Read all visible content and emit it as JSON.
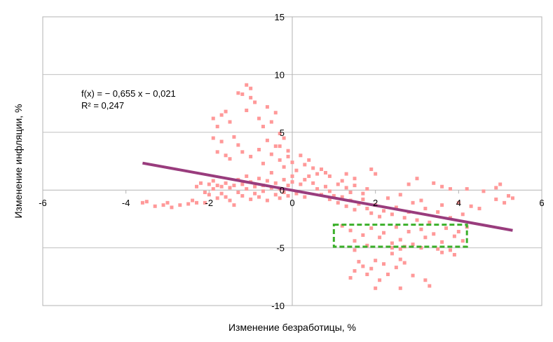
{
  "chart_data": {
    "type": "scatter",
    "title": "",
    "xlabel": "Изменение безработицы, %",
    "ylabel": "Изменение инфляции, %",
    "xlim": [
      -6,
      6
    ],
    "ylim": [
      -10,
      15
    ],
    "x_ticks": [
      "-6",
      "-4",
      "-2",
      "0",
      "2",
      "4",
      "6"
    ],
    "y_ticks": [
      "15",
      "10",
      "5",
      "0",
      "-5",
      "-10"
    ],
    "grid": "horizontal",
    "legend": "none",
    "equation": "f(x) = − 0,655 x − 0,021",
    "r_squared": "R² = 0,247",
    "trendline": {
      "slope": -0.655,
      "intercept": -0.021,
      "x_range": [
        -3.6,
        5.3
      ]
    },
    "highlight_box": {
      "x_range": [
        1.0,
        4.2
      ],
      "y_range": [
        -4.9,
        -3.0
      ],
      "note": "dashed green"
    },
    "colors": {
      "points": "#ff9999",
      "trendline": "#993c7d",
      "highlight": "#3bb02a",
      "grid": "#c0c0c0"
    },
    "series": [
      {
        "name": "points",
        "points": [
          [
            -3.6,
            -1.1
          ],
          [
            -3.5,
            -1.0
          ],
          [
            -3.3,
            -1.4
          ],
          [
            -3.1,
            -1.3
          ],
          [
            -3.0,
            -1.1
          ],
          [
            -2.9,
            -1.5
          ],
          [
            -2.7,
            -1.3
          ],
          [
            -2.5,
            -1.2
          ],
          [
            -2.4,
            -0.9
          ],
          [
            -2.3,
            -1.1
          ],
          [
            -2.1,
            -1.1
          ],
          [
            -2.3,
            0.3
          ],
          [
            -2.2,
            0.6
          ],
          [
            -2.1,
            -0.2
          ],
          [
            -2.0,
            0.5
          ],
          [
            -2.0,
            -0.4
          ],
          [
            -1.9,
            0.8
          ],
          [
            -1.9,
            0.1
          ],
          [
            -1.8,
            -0.7
          ],
          [
            -1.8,
            0.4
          ],
          [
            -1.7,
            0.3
          ],
          [
            -1.7,
            -0.3
          ],
          [
            -1.6,
            0.6
          ],
          [
            -1.6,
            -0.6
          ],
          [
            -1.5,
            0.2
          ],
          [
            -1.5,
            -0.9
          ],
          [
            -1.4,
            0.4
          ],
          [
            -1.4,
            -1.3
          ],
          [
            -1.3,
            -0.2
          ],
          [
            -1.3,
            0.9
          ],
          [
            -1.2,
            0.5
          ],
          [
            -1.2,
            -0.5
          ],
          [
            -1.1,
            1.2
          ],
          [
            -1.1,
            0.1
          ],
          [
            -1.0,
            -0.8
          ],
          [
            -1.0,
            0.7
          ],
          [
            -0.9,
            0.3
          ],
          [
            -0.9,
            -0.3
          ],
          [
            -0.8,
            1.0
          ],
          [
            -0.8,
            -0.6
          ],
          [
            -0.7,
            0.4
          ],
          [
            -0.7,
            -0.1
          ],
          [
            -0.6,
            0.8
          ],
          [
            -0.6,
            -0.9
          ],
          [
            -0.5,
            0.2
          ],
          [
            -0.5,
            1.5
          ],
          [
            -0.4,
            -0.4
          ],
          [
            -0.4,
            0.6
          ],
          [
            -0.3,
            0.1
          ],
          [
            -0.3,
            -0.7
          ],
          [
            -0.2,
            0.9
          ],
          [
            -0.2,
            -0.2
          ],
          [
            -0.1,
            0.4
          ],
          [
            -0.1,
            -0.5
          ],
          [
            0.0,
            0.7
          ],
          [
            0.1,
            -0.3
          ],
          [
            0.2,
            0.5
          ],
          [
            0.3,
            -0.6
          ],
          [
            0.4,
            1.2
          ],
          [
            -1.9,
            6.2
          ],
          [
            -1.8,
            5.5
          ],
          [
            -1.7,
            6.5
          ],
          [
            -1.6,
            6.8
          ],
          [
            -1.9,
            4.5
          ],
          [
            -1.7,
            4.2
          ],
          [
            -1.5,
            5.9
          ],
          [
            -1.4,
            4.6
          ],
          [
            -1.8,
            3.3
          ],
          [
            -1.6,
            3.0
          ],
          [
            -1.3,
            3.9
          ],
          [
            -1.5,
            2.7
          ],
          [
            -1.2,
            3.3
          ],
          [
            -1.0,
            2.9
          ],
          [
            -1.3,
            8.4
          ],
          [
            -1.2,
            8.3
          ],
          [
            -1.1,
            9.1
          ],
          [
            -1.0,
            8.8
          ],
          [
            -1.0,
            8.0
          ],
          [
            -0.9,
            7.6
          ],
          [
            -1.1,
            6.9
          ],
          [
            -0.8,
            6.2
          ],
          [
            -0.6,
            7.2
          ],
          [
            -0.4,
            6.7
          ],
          [
            -0.7,
            5.5
          ],
          [
            -0.5,
            5.9
          ],
          [
            -0.3,
            4.9
          ],
          [
            -0.6,
            4.3
          ],
          [
            -0.4,
            3.8
          ],
          [
            -0.2,
            4.5
          ],
          [
            -0.8,
            3.5
          ],
          [
            -0.5,
            3.1
          ],
          [
            -0.3,
            2.6
          ],
          [
            -0.1,
            2.9
          ],
          [
            -0.7,
            2.3
          ],
          [
            -0.2,
            2.0
          ],
          [
            0.0,
            2.4
          ],
          [
            0.1,
            1.7
          ],
          [
            0.3,
            2.2
          ],
          [
            0.4,
            2.6
          ],
          [
            0.5,
            1.9
          ],
          [
            0.6,
            1.4
          ],
          [
            0.7,
            1.8
          ],
          [
            0.8,
            1.5
          ],
          [
            0.9,
            1.2
          ],
          [
            -0.1,
            3.4
          ],
          [
            0.2,
            3.0
          ],
          [
            -0.3,
            3.8
          ],
          [
            0.0,
            1.2
          ],
          [
            0.3,
            0.9
          ],
          [
            0.5,
            0.6
          ],
          [
            0.6,
            0.1
          ],
          [
            0.8,
            0.3
          ],
          [
            0.9,
            -0.1
          ],
          [
            1.1,
            0.5
          ],
          [
            1.2,
            0.8
          ],
          [
            1.3,
            0.2
          ],
          [
            1.4,
            -0.2
          ],
          [
            1.5,
            0.4
          ],
          [
            1.7,
            -0.3
          ],
          [
            1.8,
            0.1
          ],
          [
            1.3,
            1.4
          ],
          [
            1.5,
            1.0
          ],
          [
            1.9,
            1.8
          ],
          [
            2.0,
            1.4
          ],
          [
            0.7,
            -0.4
          ],
          [
            0.9,
            -0.8
          ],
          [
            1.0,
            -0.5
          ],
          [
            1.1,
            -1.1
          ],
          [
            1.2,
            -0.6
          ],
          [
            1.3,
            -1.4
          ],
          [
            1.4,
            -0.9
          ],
          [
            1.5,
            -1.7
          ],
          [
            1.6,
            -1.2
          ],
          [
            1.7,
            -0.8
          ],
          [
            1.8,
            -1.6
          ],
          [
            1.9,
            -2.0
          ],
          [
            2.0,
            -1.3
          ],
          [
            2.1,
            -2.3
          ],
          [
            2.2,
            -1.8
          ],
          [
            2.3,
            -0.7
          ],
          [
            2.4,
            -2.1
          ],
          [
            2.5,
            -1.5
          ],
          [
            2.6,
            -0.4
          ],
          [
            2.7,
            -2.4
          ],
          [
            2.8,
            -1.9
          ],
          [
            2.9,
            -1.1
          ],
          [
            3.0,
            -2.6
          ],
          [
            3.1,
            -0.9
          ],
          [
            3.2,
            -1.6
          ],
          [
            3.3,
            -2.8
          ],
          [
            3.5,
            -1.9
          ],
          [
            3.6,
            -1.3
          ],
          [
            3.8,
            -2.4
          ],
          [
            4.0,
            -1.1
          ],
          [
            4.1,
            -2.1
          ],
          [
            4.3,
            -1.4
          ],
          [
            4.5,
            -1.6
          ],
          [
            3.4,
            0.6
          ],
          [
            3.6,
            0.3
          ],
          [
            3.8,
            0.1
          ],
          [
            4.2,
            0.1
          ],
          [
            2.8,
            0.5
          ],
          [
            3.0,
            1.0
          ],
          [
            4.6,
            -0.1
          ],
          [
            4.9,
            0.2
          ],
          [
            5.0,
            0.5
          ],
          [
            4.9,
            -0.8
          ],
          [
            5.1,
            -1.1
          ],
          [
            5.2,
            -0.5
          ],
          [
            5.3,
            -0.7
          ],
          [
            1.2,
            -3.1
          ],
          [
            1.4,
            -3.5
          ],
          [
            1.5,
            -4.4
          ],
          [
            1.7,
            -3.9
          ],
          [
            1.8,
            -4.8
          ],
          [
            1.9,
            -3.3
          ],
          [
            2.1,
            -4.1
          ],
          [
            2.2,
            -3.7
          ],
          [
            2.4,
            -4.6
          ],
          [
            2.5,
            -3.2
          ],
          [
            2.6,
            -4.3
          ],
          [
            2.8,
            -3.6
          ],
          [
            2.9,
            -4.7
          ],
          [
            3.1,
            -3.4
          ],
          [
            3.2,
            -4.1
          ],
          [
            3.4,
            -3.8
          ],
          [
            3.6,
            -4.5
          ],
          [
            3.7,
            -3.3
          ],
          [
            3.9,
            -4.0
          ],
          [
            4.0,
            -3.6
          ],
          [
            4.1,
            -4.4
          ],
          [
            4.2,
            -3.2
          ],
          [
            3.5,
            -5.1
          ],
          [
            3.6,
            -5.4
          ],
          [
            3.8,
            -5.2
          ],
          [
            3.9,
            -5.6
          ],
          [
            3.1,
            -5.0
          ],
          [
            2.6,
            -5.1
          ],
          [
            2.4,
            -5.5
          ],
          [
            1.5,
            -5.2
          ],
          [
            1.6,
            -6.2
          ],
          [
            1.7,
            -6.6
          ],
          [
            1.5,
            -7.0
          ],
          [
            1.4,
            -7.6
          ],
          [
            1.8,
            -7.3
          ],
          [
            1.9,
            -6.8
          ],
          [
            2.0,
            -6.1
          ],
          [
            2.1,
            -7.8
          ],
          [
            2.2,
            -6.4
          ],
          [
            2.3,
            -7.3
          ],
          [
            2.5,
            -6.7
          ],
          [
            2.6,
            -6.0
          ],
          [
            2.7,
            -6.3
          ],
          [
            2.9,
            -7.4
          ],
          [
            3.2,
            -7.8
          ],
          [
            3.3,
            -8.3
          ],
          [
            2.0,
            -8.5
          ],
          [
            2.6,
            -8.5
          ],
          [
            2.4,
            -5.0
          ],
          [
            2.7,
            -4.9
          ]
        ]
      }
    ]
  }
}
